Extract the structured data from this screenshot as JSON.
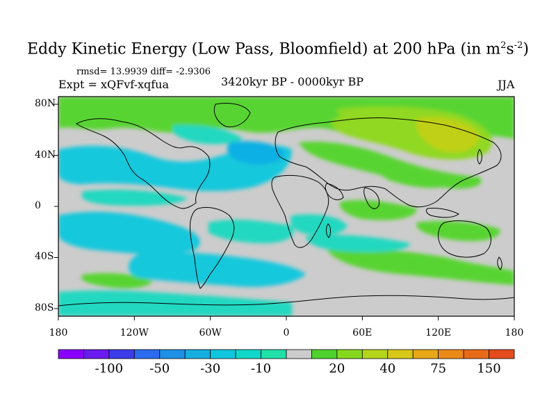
{
  "title": {
    "main": "Eddy Kinetic Energy (Low Pass, Bloomfield) at 200 hPa (in m",
    "sup1": "2",
    "mid": "s",
    "sup2": "-2",
    "end": ")"
  },
  "stats": "rmsd= 13.9939 diff= -2.9306",
  "experiment": "Expt = xQFvf-xqfua",
  "period": "3420kyr BP - 0000kyr BP",
  "season": "JJA",
  "axes": {
    "y_ticks": [
      {
        "label": "80N",
        "lat": 80
      },
      {
        "label": "40N",
        "lat": 40
      },
      {
        "label": "0",
        "lat": 0
      },
      {
        "label": "40S",
        "lat": -40
      },
      {
        "label": "80S",
        "lat": -80
      }
    ],
    "x_ticks": [
      {
        "label": "180",
        "lon": -180
      },
      {
        "label": "120W",
        "lon": -120
      },
      {
        "label": "60W",
        "lon": -60
      },
      {
        "label": "0",
        "lon": 0
      },
      {
        "label": "60E",
        "lon": 60
      },
      {
        "label": "120E",
        "lon": 120
      },
      {
        "label": "180",
        "lon": 180
      }
    ]
  },
  "colorbar": {
    "colors": [
      "#8a00ff",
      "#6a1bf0",
      "#3c3ce8",
      "#2a6bf0",
      "#1e90e6",
      "#16aee0",
      "#0fc6e0",
      "#10d8c8",
      "#20e0a8",
      "#cccccc",
      "#4fd22e",
      "#86d81e",
      "#b4d61a",
      "#d8c818",
      "#e8a818",
      "#ec8a18",
      "#e86a18",
      "#e44c1c"
    ],
    "labels": [
      {
        "text": "-100",
        "index": 2
      },
      {
        "text": "-50",
        "index": 4
      },
      {
        "text": "-30",
        "index": 6
      },
      {
        "text": "-10",
        "index": 8
      },
      {
        "text": "20",
        "index": 11
      },
      {
        "text": "40",
        "index": 13
      },
      {
        "text": "75",
        "index": 15
      },
      {
        "text": "150",
        "index": 17
      }
    ]
  },
  "map_colors": {
    "neutral": "#cccccc",
    "neg_light": "#20d8c0",
    "neg_mid": "#16c8dc",
    "neg_strong": "#0fb0e4",
    "pos_light": "#58d430",
    "pos_mid": "#90d820",
    "pos_strong": "#c0d018"
  }
}
